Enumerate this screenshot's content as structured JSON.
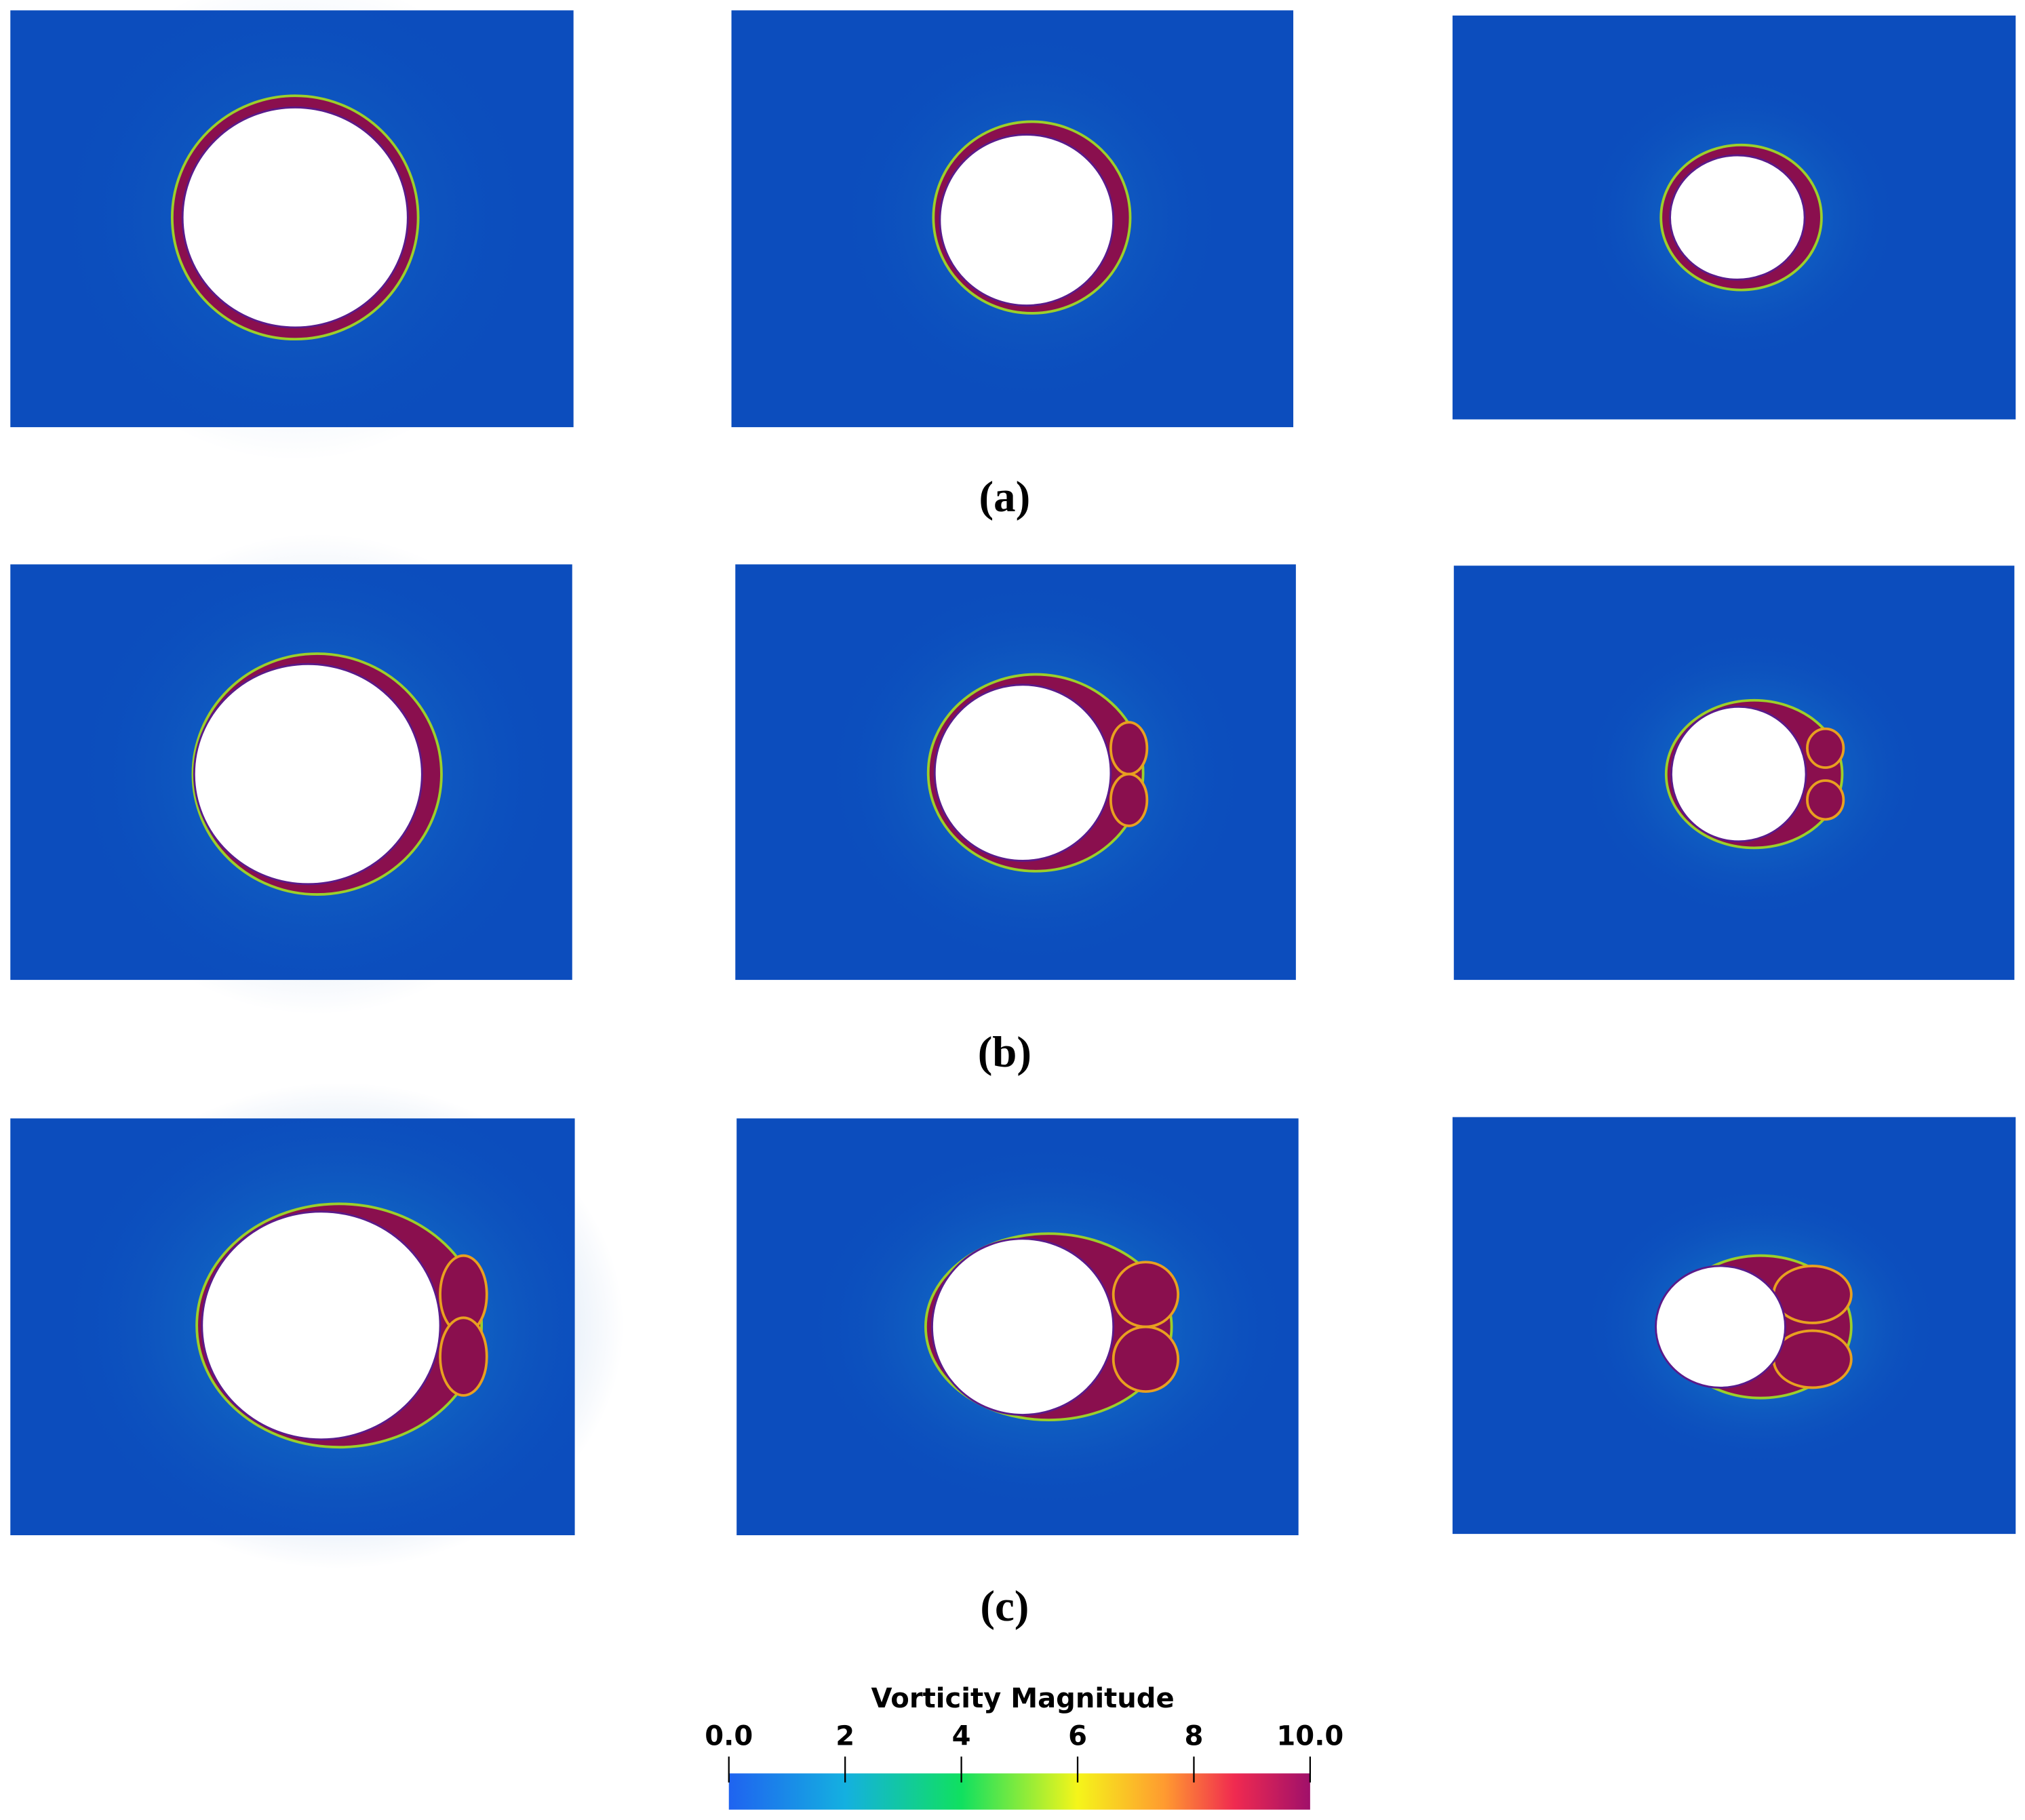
{
  "captions": [
    "(a)",
    "(b)",
    "(c)"
  ],
  "colorbar": {
    "title": "Vorticity Magnitude",
    "lim": [
      0,
      10
    ],
    "ticks": [
      {
        "value": 0,
        "label": "0.0"
      },
      2,
      4,
      6,
      8,
      {
        "value": 10,
        "label": "10.0"
      }
    ]
  }
}
